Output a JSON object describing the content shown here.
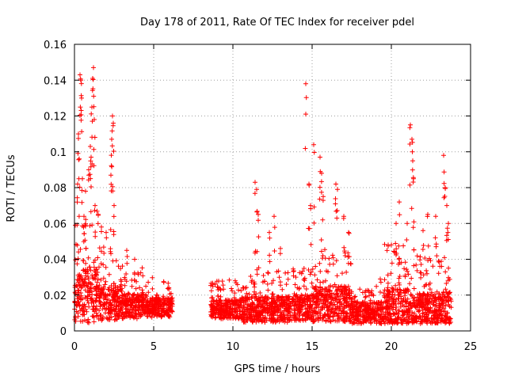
{
  "chart_data": {
    "type": "scatter",
    "title": "Day 178 of 2011, Rate Of TEC Index for receiver pdel",
    "xlabel": "GPS time / hours",
    "ylabel": "ROTI / TECUs",
    "xlim": [
      0,
      25
    ],
    "ylim": [
      0,
      0.16
    ],
    "x_ticks": [
      0,
      5,
      10,
      15,
      20,
      25
    ],
    "y_ticks": [
      0,
      0.02,
      0.04,
      0.06,
      0.08,
      0.1,
      0.12,
      0.14,
      0.16
    ],
    "x_tick_labels": [
      "0",
      "5",
      "10",
      "15",
      "20",
      "25"
    ],
    "y_tick_labels": [
      "0",
      "0.02",
      "0.04",
      "0.06",
      "0.08",
      "0.1",
      "0.12",
      "0.14",
      "0.16"
    ],
    "grid": true,
    "marker": "plus",
    "series_color": "#ff0000",
    "series": [
      {
        "name": "ROTI",
        "density_profile": [
          {
            "x0": 0.0,
            "x1": 0.5,
            "base": 0.018,
            "spread": 0.03
          },
          {
            "x0": 0.5,
            "x1": 1.5,
            "base": 0.02,
            "spread": 0.035
          },
          {
            "x0": 1.5,
            "x1": 3.0,
            "base": 0.016,
            "spread": 0.022
          },
          {
            "x0": 3.0,
            "x1": 4.5,
            "base": 0.014,
            "spread": 0.016
          },
          {
            "x0": 4.5,
            "x1": 6.2,
            "base": 0.013,
            "spread": 0.012
          },
          {
            "x0": 8.6,
            "x1": 10.5,
            "base": 0.012,
            "spread": 0.012
          },
          {
            "x0": 10.5,
            "x1": 13.5,
            "base": 0.012,
            "spread": 0.016
          },
          {
            "x0": 13.5,
            "x1": 15.0,
            "base": 0.013,
            "spread": 0.016
          },
          {
            "x0": 15.0,
            "x1": 17.5,
            "base": 0.015,
            "spread": 0.022
          },
          {
            "x0": 17.5,
            "x1": 19.5,
            "base": 0.01,
            "spread": 0.014
          },
          {
            "x0": 19.5,
            "x1": 21.5,
            "base": 0.012,
            "spread": 0.026
          },
          {
            "x0": 21.5,
            "x1": 23.8,
            "base": 0.012,
            "spread": 0.022
          }
        ],
        "spikes": [
          [
            0.2,
            0.082
          ],
          [
            0.25,
            0.11
          ],
          [
            0.3,
            0.096
          ],
          [
            0.35,
            0.143
          ],
          [
            0.4,
            0.14
          ],
          [
            0.45,
            0.13
          ],
          [
            0.5,
            0.085
          ],
          [
            0.6,
            0.064
          ],
          [
            0.7,
            0.078
          ],
          [
            0.9,
            0.09
          ],
          [
            1.0,
            0.103
          ],
          [
            1.05,
            0.097
          ],
          [
            1.1,
            0.125
          ],
          [
            1.15,
            0.141
          ],
          [
            1.2,
            0.147
          ],
          [
            1.25,
            0.118
          ],
          [
            1.3,
            0.07
          ],
          [
            1.5,
            0.065
          ],
          [
            1.7,
            0.058
          ],
          [
            2.0,
            0.055
          ],
          [
            2.3,
            0.087
          ],
          [
            2.35,
            0.107
          ],
          [
            2.4,
            0.12
          ],
          [
            2.45,
            0.116
          ],
          [
            2.5,
            0.07
          ],
          [
            3.3,
            0.045
          ],
          [
            3.8,
            0.04
          ],
          [
            11.4,
            0.083
          ],
          [
            11.5,
            0.079
          ],
          [
            11.6,
            0.065
          ],
          [
            12.3,
            0.055
          ],
          [
            12.6,
            0.064
          ],
          [
            13.0,
            0.046
          ],
          [
            14.6,
            0.138
          ],
          [
            14.8,
            0.082
          ],
          [
            14.9,
            0.07
          ],
          [
            15.1,
            0.104
          ],
          [
            15.5,
            0.097
          ],
          [
            15.6,
            0.088
          ],
          [
            15.7,
            0.075
          ],
          [
            16.5,
            0.082
          ],
          [
            16.6,
            0.079
          ],
          [
            17.0,
            0.064
          ],
          [
            17.3,
            0.055
          ],
          [
            19.8,
            0.048
          ],
          [
            20.3,
            0.06
          ],
          [
            20.5,
            0.072
          ],
          [
            21.0,
            0.06
          ],
          [
            21.2,
            0.115
          ],
          [
            21.3,
            0.107
          ],
          [
            21.35,
            0.095
          ],
          [
            21.4,
            0.085
          ],
          [
            22.0,
            0.056
          ],
          [
            22.3,
            0.065
          ],
          [
            22.8,
            0.064
          ],
          [
            23.3,
            0.098
          ],
          [
            23.4,
            0.08
          ],
          [
            23.5,
            0.07
          ],
          [
            23.6,
            0.06
          ]
        ]
      }
    ]
  }
}
